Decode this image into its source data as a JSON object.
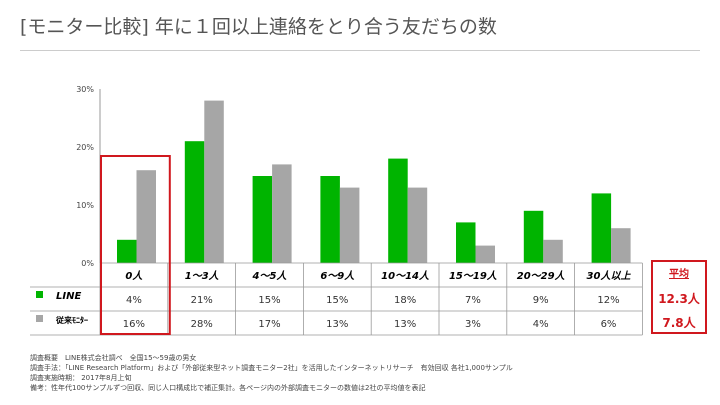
{
  "title": "[モニター比較] 年に１回以上連絡をとり合う友だちの数",
  "chart_data": {
    "type": "bar",
    "categories": [
      "0人",
      "1～3人",
      "4～5人",
      "6～9人",
      "10～14人",
      "15～19人",
      "20～29人",
      "30人以上"
    ],
    "series": [
      {
        "name": "LINE",
        "color": "#00b400",
        "values": [
          4,
          21,
          15,
          15,
          18,
          7,
          9,
          12
        ],
        "labels": [
          "4%",
          "21%",
          "15%",
          "15%",
          "18%",
          "7%",
          "9%",
          "12%"
        ]
      },
      {
        "name": "従来ﾓﾆﾀｰ",
        "color": "#a6a6a6",
        "values": [
          16,
          28,
          17,
          13,
          13,
          3,
          4,
          6
        ],
        "labels": [
          "16%",
          "28%",
          "17%",
          "13%",
          "13%",
          "3%",
          "4%",
          "6%"
        ]
      }
    ],
    "yticks": [
      "0%",
      "10%",
      "20%",
      "30%"
    ],
    "ylim": [
      0,
      30
    ],
    "highlight_category": "0人",
    "highlight_color": "#d0181e"
  },
  "average": {
    "label": "平均",
    "values": [
      "12.3人",
      "7.8人"
    ]
  },
  "notes": [
    "調査概要　LINE株式会社調べ　全国15～59歳の男女",
    "調査手法：「LINE Research Platform」および「外部従来型ネット調査モニター2社」を活用したインターネットリサーチ　有効回収 各社1,000サンプル",
    "調査実施時期： 2017年8月上旬",
    "備考：性年代100サンプルずつ回収、同じ人口構成比で補正集計。各ページ内の外部調査モニターの数値は2社の平均値を表記"
  ]
}
